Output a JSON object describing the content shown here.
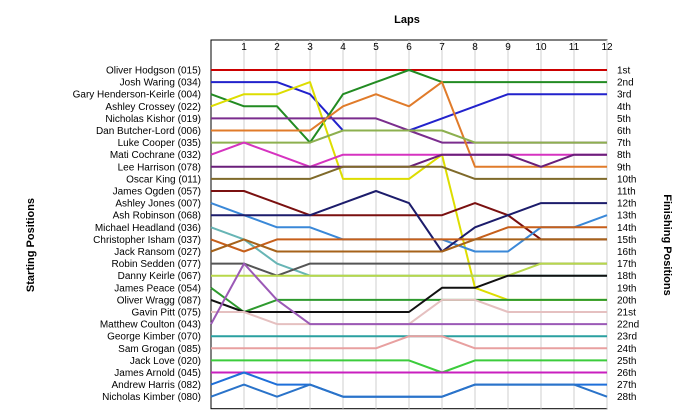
{
  "chart_data": {
    "type": "line",
    "title": "Laps",
    "ylabel_left": "Starting Positions",
    "ylabel_right": "Finishing Positions",
    "laps": [
      "1",
      "2",
      "3",
      "4",
      "5",
      "6",
      "7",
      "8",
      "9",
      "10",
      "11",
      "12"
    ],
    "drivers": [
      "Oliver Hodgson (015)",
      "Josh Waring (034)",
      "Gary Henderson-Keirle (004)",
      "Ashley Crossey (022)",
      "Nicholas Kishor (019)",
      "Dan Butcher-Lord (006)",
      "Luke Cooper (035)",
      "Mati Cochrane (032)",
      "Lee Harrison (078)",
      "Oscar King (011)",
      "James Ogden (057)",
      "Ashley Jones (007)",
      "Ash Robinson (068)",
      "Michael Headland (036)",
      "Christopher Isham (037)",
      "Jack Ransom (027)",
      "Robin Sedden (077)",
      "Danny Keirle (067)",
      "James Peace (054)",
      "Oliver Wragg (087)",
      "Gavin Pitt (075)",
      "Matthew Coulton (043)",
      "George Kimber (070)",
      "Sam Grogan (085)",
      "Jack Love (020)",
      "James Arnold (045)",
      "Andrew Harris (082)",
      "Nicholas Kimber (080)"
    ],
    "finish_labels": [
      "1st",
      "2nd",
      "3rd",
      "4th",
      "5th",
      "6th",
      "7th",
      "8th",
      "9th",
      "10th",
      "11th",
      "12th",
      "13th",
      "14th",
      "15th",
      "16th",
      "17th",
      "18th",
      "19th",
      "20th",
      "21st",
      "22nd",
      "23rd",
      "24th",
      "25th",
      "26th",
      "27th",
      "28th"
    ],
    "series": [
      {
        "color": "#cc0000",
        "positions": [
          1,
          1,
          1,
          1,
          1,
          1,
          1,
          1,
          1,
          1,
          1,
          1,
          1
        ]
      },
      {
        "color": "#2222cc",
        "positions": [
          2,
          2,
          2,
          3,
          6,
          6,
          6,
          5,
          4,
          3,
          3,
          3,
          3
        ]
      },
      {
        "color": "#228b22",
        "positions": [
          3,
          4,
          4,
          7,
          3,
          2,
          1,
          2,
          2,
          2,
          2,
          2,
          2
        ]
      },
      {
        "color": "#dddd00",
        "positions": [
          4,
          3,
          3,
          2,
          10,
          10,
          10,
          8,
          19,
          20,
          20,
          20,
          20
        ]
      },
      {
        "color": "#7b2d8e",
        "positions": [
          5,
          5,
          5,
          5,
          5,
          5,
          6,
          7,
          7,
          7,
          7,
          7,
          7
        ]
      },
      {
        "color": "#e07b2a",
        "positions": [
          6,
          6,
          6,
          6,
          4,
          3,
          4,
          2,
          9,
          9,
          9,
          9,
          9
        ]
      },
      {
        "color": "#8db04f",
        "positions": [
          7,
          7,
          7,
          7,
          6,
          6,
          6,
          6,
          7,
          7,
          7,
          7,
          7
        ]
      },
      {
        "color": "#d633c0",
        "positions": [
          8,
          7,
          8,
          9,
          8,
          8,
          8,
          8,
          8,
          8,
          8,
          8,
          8
        ]
      },
      {
        "color": "#6a1f7a",
        "positions": [
          9,
          9,
          9,
          9,
          9,
          9,
          9,
          8,
          8,
          8,
          9,
          8,
          8
        ]
      },
      {
        "color": "#7f6a2a",
        "positions": [
          10,
          10,
          10,
          10,
          9,
          9,
          9,
          9,
          10,
          10,
          10,
          10,
          10
        ]
      },
      {
        "color": "#7a1010",
        "positions": [
          11,
          11,
          12,
          13,
          13,
          13,
          13,
          13,
          12,
          13,
          15,
          15,
          15
        ]
      },
      {
        "color": "#3a88d8",
        "positions": [
          12,
          13,
          14,
          14,
          15,
          15,
          15,
          15,
          16,
          16,
          14,
          14,
          13
        ]
      },
      {
        "color": "#1c1c6b",
        "positions": [
          13,
          13,
          13,
          13,
          12,
          11,
          12,
          16,
          14,
          13,
          12,
          12,
          12
        ]
      },
      {
        "color": "#67b5b5",
        "positions": [
          14,
          15,
          17,
          18,
          18,
          18,
          18,
          18,
          18,
          18,
          18,
          18,
          18
        ]
      },
      {
        "color": "#c65f1a",
        "positions": [
          15,
          16,
          15,
          15,
          15,
          15,
          15,
          15,
          15,
          14,
          14,
          14,
          14
        ]
      },
      {
        "color": "#a6621a",
        "positions": [
          16,
          15,
          16,
          16,
          16,
          16,
          16,
          16,
          15,
          15,
          15,
          15,
          15
        ]
      },
      {
        "color": "#555555",
        "positions": [
          17,
          17,
          18,
          17,
          17,
          17,
          17,
          17,
          17,
          17,
          17,
          17,
          17
        ]
      },
      {
        "color": "#b8d84a",
        "positions": [
          18,
          18,
          18,
          18,
          18,
          18,
          18,
          18,
          18,
          18,
          17,
          17,
          17
        ]
      },
      {
        "color": "#2e9a2e",
        "positions": [
          19,
          21,
          20,
          20,
          20,
          20,
          20,
          20,
          20,
          20,
          20,
          20,
          20
        ]
      },
      {
        "color": "#111111",
        "positions": [
          20,
          21,
          21,
          21,
          21,
          21,
          21,
          19,
          19,
          18,
          18,
          18,
          18
        ]
      },
      {
        "color": "#e5c0c0",
        "positions": [
          21,
          21,
          22,
          22,
          22,
          22,
          22,
          20,
          20,
          21,
          21,
          21,
          21
        ]
      },
      {
        "color": "#9b59b6",
        "positions": [
          22,
          17,
          20,
          22,
          22,
          22,
          22,
          22,
          22,
          22,
          22,
          22,
          22
        ]
      },
      {
        "color": "#2aa0a0",
        "positions": [
          23,
          23,
          23,
          23,
          23,
          23,
          23,
          23,
          23,
          23,
          23,
          23,
          23
        ]
      },
      {
        "color": "#e8a0a0",
        "positions": [
          24,
          24,
          24,
          24,
          24,
          24,
          23,
          23,
          24,
          24,
          24,
          24,
          24
        ]
      },
      {
        "color": "#3ccc3c",
        "positions": [
          25,
          25,
          25,
          25,
          25,
          25,
          25,
          26,
          25,
          25,
          25,
          25,
          25
        ]
      },
      {
        "color": "#c91fbf",
        "positions": [
          26,
          26,
          26,
          26,
          26,
          26,
          26,
          26,
          26,
          26,
          26,
          26,
          26
        ]
      },
      {
        "color": "#1e6fd9",
        "positions": [
          27,
          26,
          27,
          27,
          28,
          28,
          28,
          28,
          27,
          27,
          27,
          27,
          27
        ]
      },
      {
        "color": "#2a73c9",
        "positions": [
          28,
          27,
          28,
          27,
          28,
          28,
          28,
          28,
          27,
          27,
          27,
          27,
          28
        ]
      }
    ]
  }
}
